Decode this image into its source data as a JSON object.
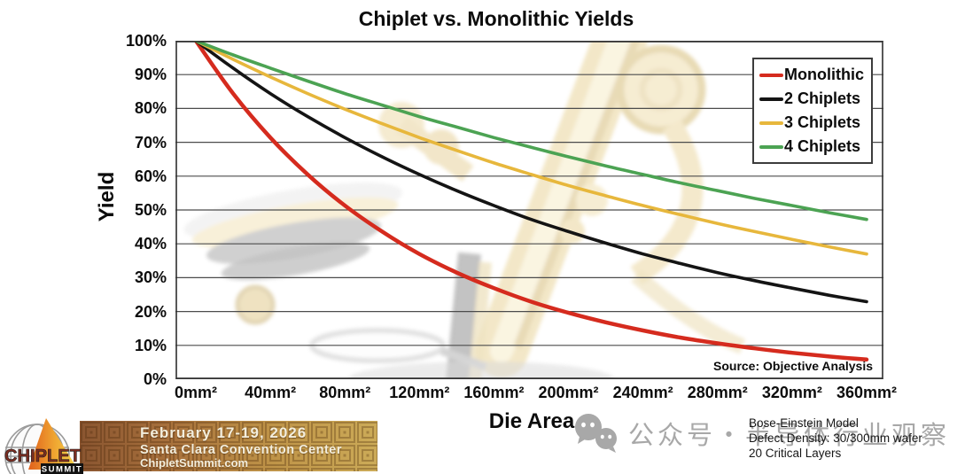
{
  "chart_data": {
    "type": "line",
    "title": "Chiplet vs. Monolithic Yields",
    "xlabel": "Die Area",
    "ylabel": "Yield",
    "xlim": [
      0,
      360
    ],
    "ylim": [
      0,
      100
    ],
    "grid": "horizontal-every-10pct",
    "legend_position": "top-right",
    "x": [
      0,
      20,
      40,
      60,
      80,
      100,
      120,
      140,
      160,
      180,
      200,
      220,
      240,
      260,
      280,
      300,
      320,
      340,
      360
    ],
    "x_tick_values": [
      0,
      40,
      80,
      120,
      160,
      200,
      240,
      280,
      320,
      360
    ],
    "x_tick_labels": [
      "0mm²",
      "40mm²",
      "80mm²",
      "120mm²",
      "160mm²",
      "200mm²",
      "240mm²",
      "280mm²",
      "320mm²",
      "360mm²"
    ],
    "y_tick_labels": [
      "100%",
      "90%",
      "80%",
      "70%",
      "60%",
      "50%",
      "40%",
      "30%",
      "20%",
      "10%",
      "0%"
    ],
    "series": [
      {
        "name": "Monolithic",
        "color": "#d52b1e",
        "width": 4.5,
        "values": [
          100,
          84.4,
          71.4,
          60.5,
          51.3,
          43.6,
          37.0,
          31.5,
          26.9,
          22.9,
          19.6,
          16.8,
          14.4,
          12.3,
          10.6,
          9.1,
          7.8,
          6.7,
          5.8
        ]
      },
      {
        "name": "2 Chiplets",
        "color": "#141414",
        "width": 3.6,
        "values": [
          100,
          91.9,
          84.4,
          77.6,
          71.4,
          65.7,
          60.5,
          55.7,
          51.3,
          47.2,
          43.6,
          40.2,
          37.0,
          34.2,
          31.5,
          29.1,
          26.9,
          24.8,
          22.9
        ]
      },
      {
        "name": "3 Chiplets",
        "color": "#e7b73c",
        "width": 3.6,
        "values": [
          100,
          94.5,
          89.3,
          84.4,
          79.8,
          75.5,
          71.4,
          67.6,
          63.9,
          60.5,
          57.2,
          54.2,
          51.3,
          48.6,
          46.0,
          43.6,
          41.3,
          39.1,
          37.0
        ]
      },
      {
        "name": "4 Chiplets",
        "color": "#4ca353",
        "width": 3.6,
        "values": [
          100,
          95.8,
          91.9,
          88.1,
          84.4,
          81.0,
          77.6,
          74.5,
          71.4,
          68.5,
          65.7,
          63.0,
          60.5,
          58.0,
          55.7,
          53.4,
          51.3,
          49.2,
          47.2
        ]
      }
    ],
    "source_note": "Source: Objective Analysis"
  },
  "model_note": {
    "lines": [
      "Bose-Einstein Model",
      "Defect Density: 30/300mm wafer",
      "20 Critical Layers"
    ]
  },
  "watermark": {
    "icon": "wechat-icon",
    "text": "公众号・半导体行业观察"
  },
  "footer": {
    "logo": {
      "name": "CHIPLET",
      "sub": "SUMMIT"
    },
    "event": {
      "date": "February 17-19, 2026",
      "venue": "Santa Clara Convention Center",
      "website": "ChipletSummit.com"
    }
  },
  "colors": {
    "grid": "#4c4c4c",
    "plot_border": "#2f2f2f",
    "watermark_text": "#a8a8a8"
  }
}
